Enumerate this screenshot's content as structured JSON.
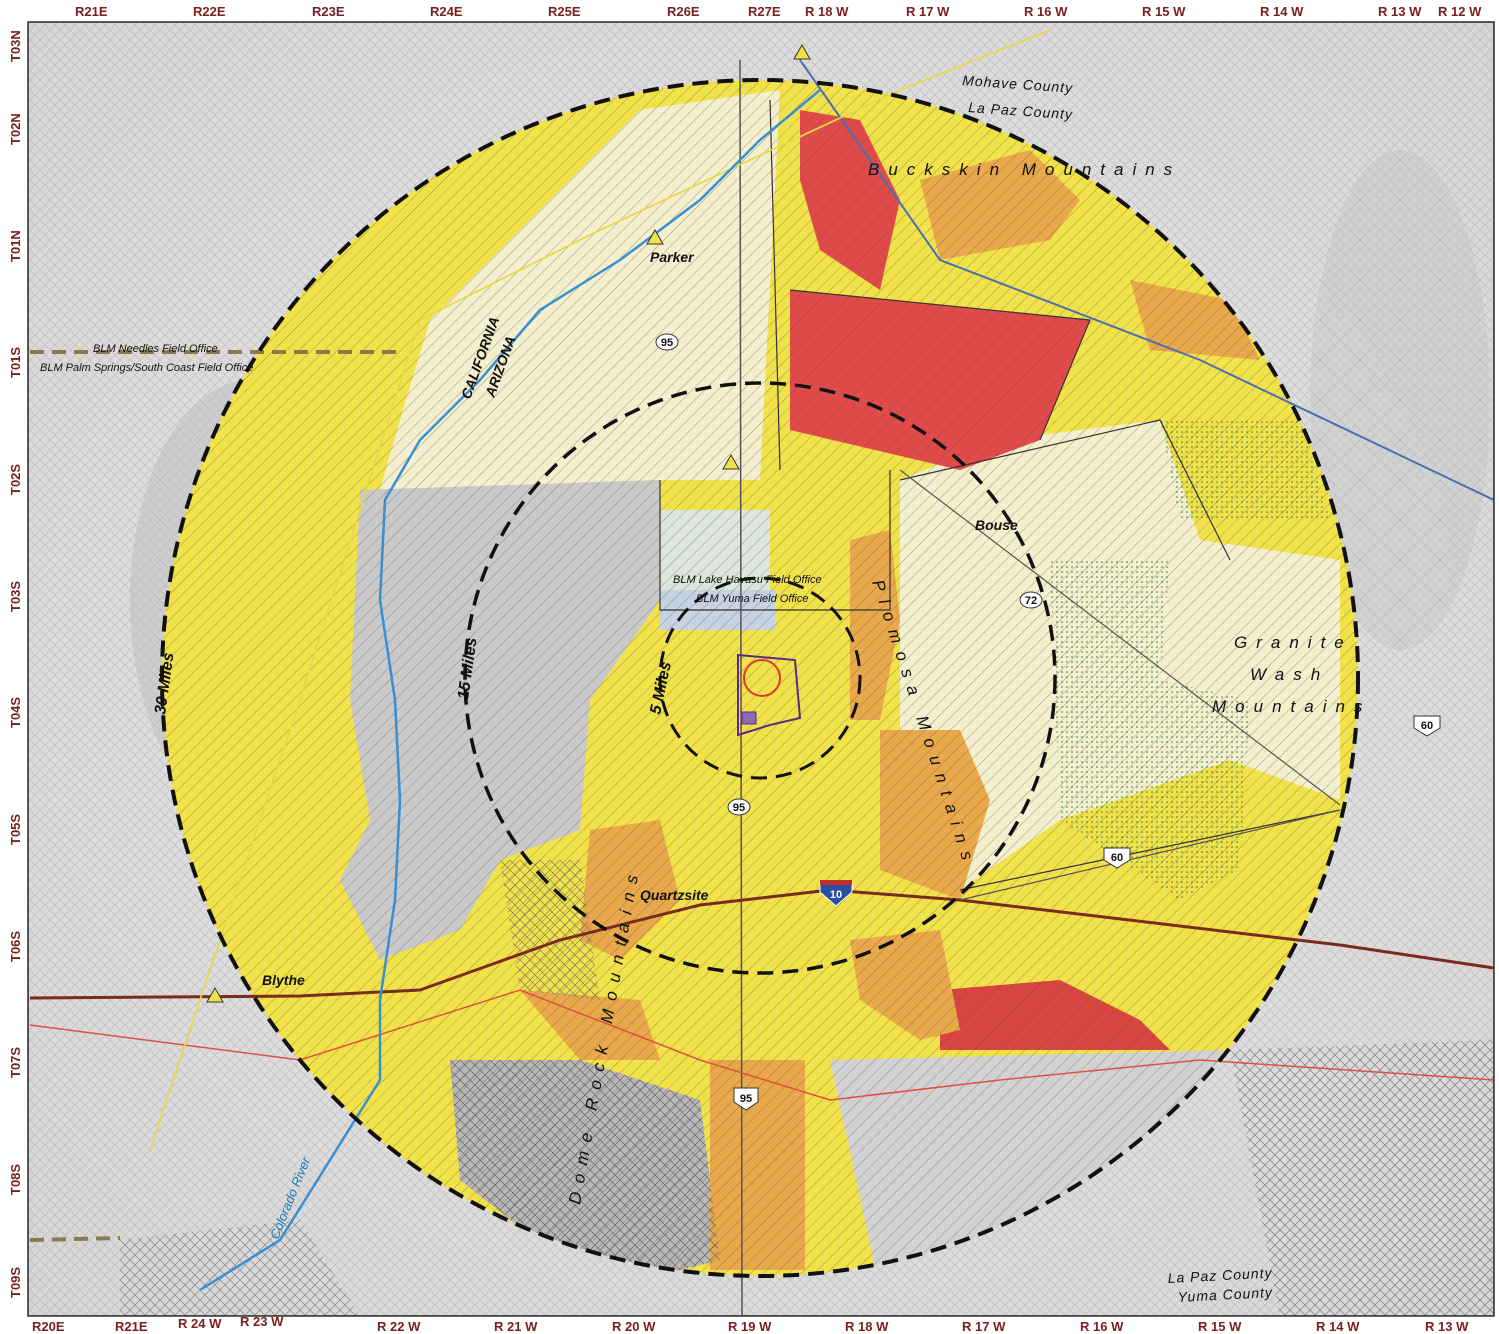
{
  "top_range_labels": [
    "R21E",
    "R22E",
    "R23E",
    "R24E",
    "R25E",
    "R26E",
    "R27E",
    "R 18 W",
    "R 17 W",
    "R 16 W",
    "R 15 W",
    "R 14 W",
    "R 13 W",
    "R 12 W"
  ],
  "bottom_range_labels": [
    "R20E",
    "R21E",
    "R 24 W",
    "R 23 W",
    "R 22 W",
    "R 21 W",
    "R 20 W",
    "R 19 W",
    "R 18 W",
    "R 17 W",
    "R 16 W",
    "R 15 W",
    "R 14 W",
    "R 13 W"
  ],
  "township_labels": [
    "T03N",
    "T02N",
    "T01N",
    "T01S",
    "T02S",
    "T03S",
    "T04S",
    "T05S",
    "T06S",
    "T07S",
    "T08S",
    "T09S"
  ],
  "places": {
    "parker": "Parker",
    "bouse": "Bouse",
    "quartzsite": "Quartzsite",
    "blythe": "Blythe"
  },
  "mountains": {
    "buckskin": "Buckskin Mountains",
    "granite1": "Granite",
    "granite2": "Wash",
    "granite3": "Mountains",
    "plomosa": "Plomosa Mountains",
    "dome_rock": "Dome Rock Mountains"
  },
  "field_offices": {
    "needles": "BLM Needles Field Office",
    "palm_springs": "BLM Palm Springs/South Coast Field Office",
    "lake_havasu": "BLM Lake Havasu Field Office",
    "yuma": "BLM Yuma Field Office"
  },
  "states": {
    "california": "CALIFORNIA",
    "arizona": "ARIZONA"
  },
  "river": "Colorado River",
  "distances": {
    "d30": "30 Miles",
    "d15": "15 Miles",
    "d5": "5 Miles"
  },
  "counties": {
    "mohave": "Mohave County",
    "lapaz_top": "La Paz County",
    "lapaz_bottom": "La Paz County",
    "yuma": "Yuma County"
  },
  "highways": {
    "h95a": "95",
    "h95b": "95",
    "h95c": "95",
    "h72": "72",
    "h60a": "60",
    "h60b": "60",
    "i10": "10"
  },
  "colors": {
    "yellow": "#f2e24a",
    "orange": "#e9a84a",
    "red": "#e24a4a",
    "cream": "#f4efcc",
    "grey": "#c9c9c9",
    "grid_label": "#7a1e1e"
  }
}
